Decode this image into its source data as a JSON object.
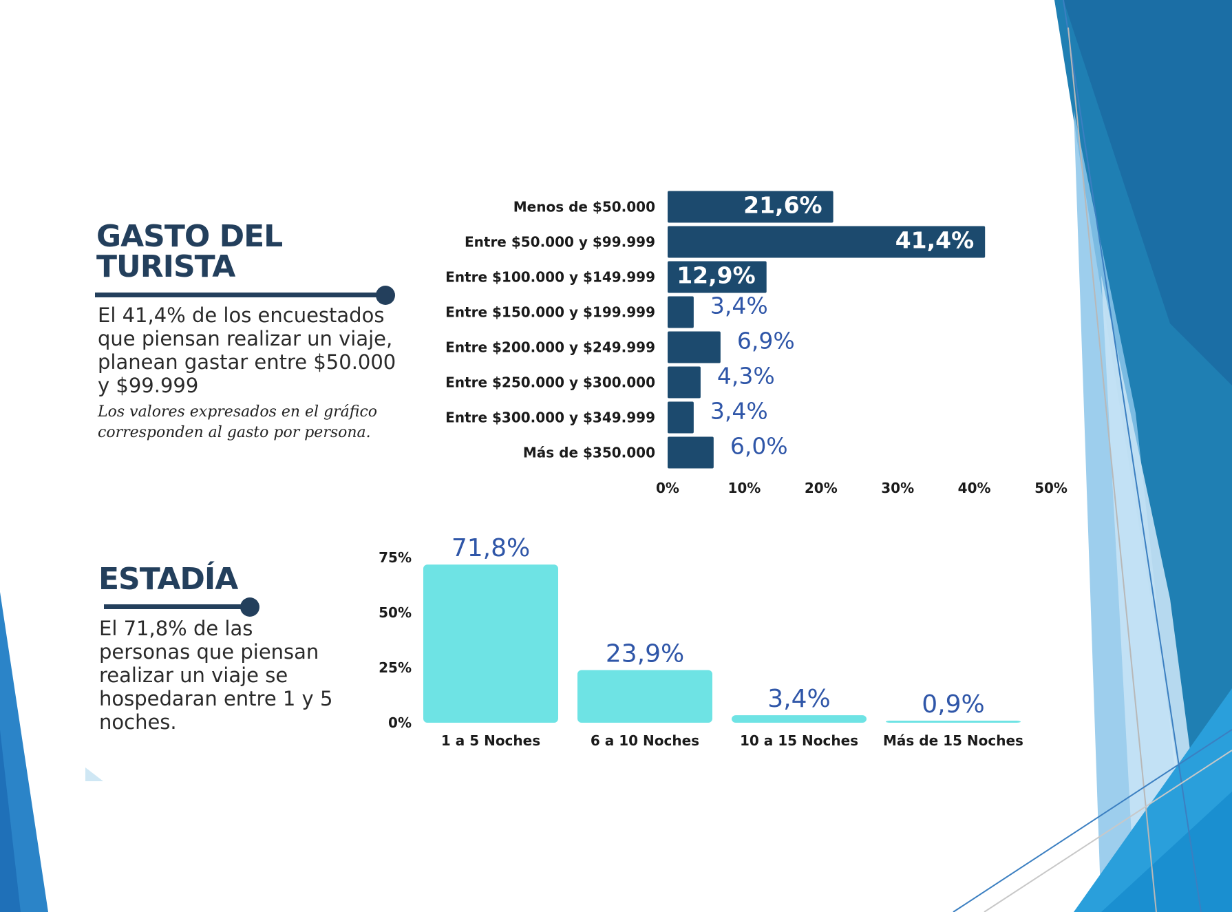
{
  "gasto": {
    "title": "GASTO DEL TURISTA",
    "description": "El 41,4% de los encuestados que piensan realizar un viaje, planean gastar entre $50.000 y $99.999",
    "note": "Los valores expresados en el gráfico corresponden al gasto por persona."
  },
  "estadia": {
    "title": "ESTADÍA",
    "description": "El 71,8% de las personas que piensan realizar un viaje se hospedaran entre 1 y 5 noches."
  },
  "colors": {
    "navy": "#1c4a6e",
    "cyan": "#6ee3e4",
    "value_blue": "#2f56a8",
    "heading": "#233f5c"
  },
  "chart_data": [
    {
      "type": "bar",
      "orientation": "horizontal",
      "categories": [
        "Menos de $50.000",
        "Entre $50.000 y $99.999",
        "Entre $100.000 y $149.999",
        "Entre $150.000 y $199.999",
        "Entre $200.000 y $249.999",
        "Entre $250.000 y $300.000",
        "Entre $300.000 y $349.999",
        "Más de $350.000"
      ],
      "values": [
        21.6,
        41.4,
        12.9,
        3.4,
        6.9,
        4.3,
        3.4,
        6.0
      ],
      "value_labels": [
        "21,6%",
        "41,4%",
        "12,9%",
        "3,4%",
        "6,9%",
        "4,3%",
        "3,4%",
        "6,0%"
      ],
      "xlim": [
        0,
        50
      ],
      "x_ticks": [
        "0%",
        "10%",
        "20%",
        "30%",
        "40%",
        "50%"
      ],
      "grid": false
    },
    {
      "type": "bar",
      "orientation": "vertical",
      "categories": [
        "1 a 5 Noches",
        "6 a 10 Noches",
        "10 a 15 Noches",
        "Más de 15 Noches"
      ],
      "values": [
        71.8,
        23.9,
        3.4,
        0.9
      ],
      "value_labels": [
        "71,8%",
        "23,9%",
        "3,4%",
        "0,9%"
      ],
      "ylim": [
        0,
        75
      ],
      "y_ticks": [
        "0%",
        "25%",
        "50%",
        "75%"
      ],
      "grid": false
    }
  ]
}
